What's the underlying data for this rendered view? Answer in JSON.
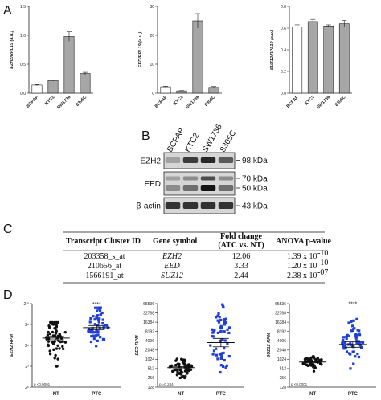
{
  "panels": {
    "a": "A",
    "b": "B",
    "c": "C",
    "d": "D"
  },
  "chart_data": [
    {
      "type": "bar",
      "panel": "A",
      "ylabel": "EZH2/RPL19 (a.u.)",
      "ylim": [
        0,
        1.5
      ],
      "yticks": [
        0.0,
        0.5,
        1.0,
        1.5
      ],
      "ytick_labels": [
        "0.0",
        "0.5",
        "1.0",
        "1.5"
      ],
      "categories": [
        "BCPAP",
        "KTC2",
        "SW1736",
        "8305C"
      ],
      "values": [
        0.14,
        0.22,
        0.98,
        0.34
      ],
      "errors": [
        0.01,
        0.01,
        0.08,
        0.02
      ],
      "fills": [
        "#ffffff",
        "#9a9a9a",
        "#9a9a9a",
        "#9a9a9a"
      ]
    },
    {
      "type": "bar",
      "panel": "A",
      "ylabel": "EED/RPL19 (a.u.)",
      "ylim": [
        0,
        30
      ],
      "yticks": [
        0,
        10,
        20,
        30
      ],
      "ytick_labels": [
        "0",
        "10",
        "20",
        "30"
      ],
      "categories": [
        "BCPAP",
        "KTC2",
        "SW1736",
        "8305C"
      ],
      "values": [
        2.2,
        0.8,
        25.0,
        2.0
      ],
      "errors": [
        0.2,
        0.1,
        2.5,
        0.3
      ],
      "fills": [
        "#ffffff",
        "#9a9a9a",
        "#9a9a9a",
        "#9a9a9a"
      ]
    },
    {
      "type": "bar",
      "panel": "A",
      "ylabel": "SUZ12/RPL19 (a.u.)",
      "ylim": [
        0,
        0.8
      ],
      "yticks": [
        0.0,
        0.2,
        0.4,
        0.6,
        0.8
      ],
      "ytick_labels": [
        "0.0",
        "0.2",
        "0.4",
        "0.6",
        "0.8"
      ],
      "categories": [
        "BCPAP",
        "KTC2",
        "SW1736",
        "8305C"
      ],
      "values": [
        0.61,
        0.66,
        0.62,
        0.64
      ],
      "errors": [
        0.02,
        0.02,
        0.01,
        0.03
      ],
      "fills": [
        "#ffffff",
        "#9a9a9a",
        "#9a9a9a",
        "#9a9a9a"
      ]
    },
    {
      "type": "scatter",
      "panel": "D",
      "ylabel": "EZH2 RPM",
      "scale": "log2",
      "ylim_log2": [
        6,
        10
      ],
      "ytick_labels": [
        "2⁶",
        "2⁷",
        "2⁸",
        "2⁹",
        "2¹⁰"
      ],
      "categories": [
        "NT",
        "PTC"
      ],
      "colors": [
        "#111111",
        "#1f3fd6"
      ],
      "groups": [
        {
          "name": "NT",
          "mean_log2": 8.35,
          "sem_log2": 0.08,
          "sd_log2": 0.55,
          "min_log2": 7.0,
          "max_log2": 9.1,
          "n": 58
        },
        {
          "name": "PTC",
          "mean_log2": 8.85,
          "sem_log2": 0.1,
          "sd_log2": 0.55,
          "min_log2": 7.5,
          "max_log2": 9.8,
          "n": 58
        }
      ],
      "stars": "****",
      "pvalue": "p <0.0001"
    },
    {
      "type": "scatter",
      "panel": "D",
      "ylabel": "EED RPM",
      "scale": "log2",
      "ylim_log2": [
        7,
        16
      ],
      "ytick_labels": [
        "128",
        "256",
        "512",
        "1024",
        "2048",
        "4096",
        "8192",
        "16384",
        "32768",
        "65536"
      ],
      "categories": [
        "NT",
        "PTC"
      ],
      "colors": [
        "#111111",
        "#1f3fd6"
      ],
      "groups": [
        {
          "name": "NT",
          "mean_log2": 9.1,
          "sem_log2": 0.12,
          "sd_log2": 0.5,
          "min_log2": 8.0,
          "max_log2": 10.3,
          "n": 58
        },
        {
          "name": "PTC",
          "mean_log2": 11.8,
          "sem_log2": 0.45,
          "sd_log2": 2.0,
          "min_log2": 8.0,
          "max_log2": 15.9,
          "n": 58
        }
      ],
      "stars": "",
      "pvalue": "p =0.244"
    },
    {
      "type": "scatter",
      "panel": "D",
      "ylabel": "SUZ12 RPM",
      "scale": "log2",
      "ylim_log2": [
        7,
        16
      ],
      "ytick_labels": [
        "128",
        "256",
        "512",
        "1024",
        "2048",
        "4096",
        "8192",
        "16384",
        "32768",
        "65536"
      ],
      "categories": [
        "NT",
        "PTC"
      ],
      "colors": [
        "#111111",
        "#1f3fd6"
      ],
      "groups": [
        {
          "name": "NT",
          "mean_log2": 9.7,
          "sem_log2": 0.08,
          "sd_log2": 0.35,
          "min_log2": 8.3,
          "max_log2": 10.3,
          "n": 58
        },
        {
          "name": "PTC",
          "mean_log2": 11.6,
          "sem_log2": 0.3,
          "sd_log2": 1.2,
          "min_log2": 9.0,
          "max_log2": 15.6,
          "n": 58
        }
      ],
      "stars": "****",
      "pvalue": "p <0.0001"
    }
  ],
  "western": {
    "columns": [
      "BCPAP",
      "KTC2",
      "SW1736",
      "8305C"
    ],
    "rows": [
      {
        "label": "EZH2",
        "markers": [
          "98 kDa"
        ],
        "intensity": [
          0.25,
          0.75,
          0.85,
          0.6
        ]
      },
      {
        "label": "EED",
        "markers": [
          "70 kDa",
          "50 kDa"
        ],
        "intensity": [
          0.35,
          0.5,
          0.95,
          0.5
        ]
      },
      {
        "label": "β-actin",
        "markers": [
          "43 kDa"
        ],
        "intensity": [
          0.8,
          0.8,
          0.8,
          0.8
        ]
      }
    ]
  },
  "table": {
    "headers": [
      "Transcript Cluster ID",
      "Gene symbol",
      "Fold change",
      "(ATC vs. NT)",
      "ANOVA p-value"
    ],
    "rows": [
      {
        "id": "203358_s_at",
        "gene": "EZH2",
        "fold": "12.06",
        "p": "1.39 x 10",
        "exp": "-10"
      },
      {
        "id": "210656_at",
        "gene": "EED",
        "fold": "3.33",
        "p": "1.20 x 10",
        "exp": "-10"
      },
      {
        "id": "1566191_at",
        "gene": "SUZ12",
        "fold": "2.44",
        "p": "2.38 x 10",
        "exp": "-07"
      }
    ]
  }
}
